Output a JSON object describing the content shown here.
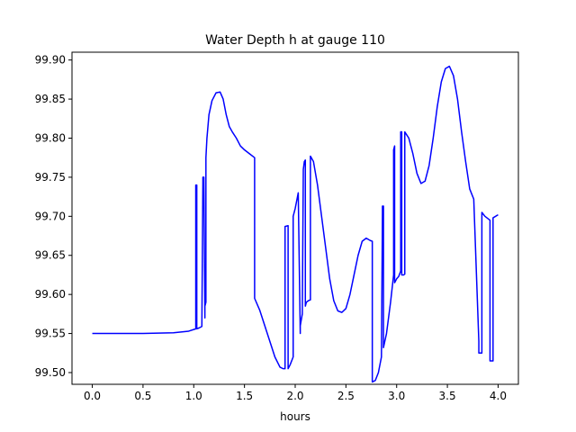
{
  "chart_data": {
    "type": "line",
    "title": "Water Depth h at gauge 110",
    "xlabel": "hours",
    "ylabel": "",
    "xlim": [
      -0.2,
      4.2
    ],
    "ylim": [
      99.485,
      99.91
    ],
    "grid": false,
    "xticks": [
      0.0,
      0.5,
      1.0,
      1.5,
      2.0,
      2.5,
      3.0,
      3.5,
      4.0
    ],
    "xtick_labels": [
      "0.0",
      "0.5",
      "1.0",
      "1.5",
      "2.0",
      "2.5",
      "3.0",
      "3.5",
      "4.0"
    ],
    "yticks": [
      99.5,
      99.55,
      99.6,
      99.65,
      99.7,
      99.75,
      99.8,
      99.85,
      99.9
    ],
    "ytick_labels": [
      "99.50",
      "99.55",
      "99.60",
      "99.65",
      "99.70",
      "99.75",
      "99.80",
      "99.85",
      "99.90"
    ],
    "series": [
      {
        "name": "",
        "color": "#0000ff",
        "x": [
          0.0,
          0.5,
          0.8,
          0.95,
          1.02,
          1.02,
          1.03,
          1.03,
          1.05,
          1.08,
          1.09,
          1.09,
          1.1,
          1.11,
          1.11,
          1.12,
          1.12,
          1.13,
          1.15,
          1.18,
          1.22,
          1.26,
          1.29,
          1.32,
          1.35,
          1.38,
          1.42,
          1.46,
          1.5,
          1.55,
          1.6,
          1.6,
          1.65,
          1.7,
          1.75,
          1.8,
          1.85,
          1.88,
          1.9,
          1.9,
          1.93,
          1.93,
          1.95,
          1.98,
          1.98,
          2.0,
          2.03,
          2.05,
          2.05,
          2.07,
          2.08,
          2.09,
          2.1,
          2.1,
          2.11,
          2.13,
          2.15,
          2.15,
          2.18,
          2.22,
          2.26,
          2.3,
          2.34,
          2.38,
          2.42,
          2.46,
          2.5,
          2.54,
          2.58,
          2.62,
          2.66,
          2.7,
          2.74,
          2.76,
          2.76,
          2.79,
          2.82,
          2.85,
          2.86,
          2.86,
          2.87,
          2.87,
          2.9,
          2.94,
          2.97,
          2.97,
          2.98,
          2.98,
          3.0,
          3.02,
          3.04,
          3.04,
          3.05,
          3.05,
          3.07,
          3.08,
          3.08,
          3.12,
          3.16,
          3.2,
          3.24,
          3.28,
          3.32,
          3.36,
          3.4,
          3.44,
          3.48,
          3.52,
          3.56,
          3.6,
          3.64,
          3.68,
          3.72,
          3.76,
          3.81,
          3.81,
          3.84,
          3.84,
          3.87,
          3.92,
          3.92,
          3.95,
          3.95,
          4.0
        ],
        "y": [
          99.55,
          99.55,
          99.551,
          99.553,
          99.556,
          99.74,
          99.74,
          99.556,
          99.557,
          99.559,
          99.745,
          99.75,
          99.75,
          99.57,
          99.585,
          99.59,
          99.775,
          99.8,
          99.83,
          99.848,
          99.858,
          99.859,
          99.85,
          99.83,
          99.815,
          99.808,
          99.8,
          99.79,
          99.785,
          99.78,
          99.775,
          99.595,
          99.58,
          99.56,
          99.54,
          99.52,
          99.507,
          99.505,
          99.505,
          99.687,
          99.688,
          99.505,
          99.51,
          99.52,
          99.7,
          99.71,
          99.73,
          99.55,
          99.56,
          99.575,
          99.76,
          99.77,
          99.772,
          99.585,
          99.59,
          99.592,
          99.593,
          99.777,
          99.77,
          99.74,
          99.7,
          99.66,
          99.62,
          99.592,
          99.579,
          99.577,
          99.582,
          99.6,
          99.625,
          99.65,
          99.668,
          99.672,
          99.669,
          99.668,
          99.488,
          99.49,
          99.5,
          99.52,
          99.705,
          99.713,
          99.713,
          99.532,
          99.55,
          99.59,
          99.625,
          99.785,
          99.79,
          99.615,
          99.62,
          99.623,
          99.63,
          99.808,
          99.808,
          99.625,
          99.625,
          99.626,
          99.808,
          99.8,
          99.78,
          99.755,
          99.742,
          99.745,
          99.765,
          99.8,
          99.84,
          99.872,
          99.889,
          99.892,
          99.88,
          99.85,
          99.808,
          99.77,
          99.735,
          99.722,
          99.54,
          99.525,
          99.525,
          99.705,
          99.7,
          99.695,
          99.515,
          99.515,
          99.698,
          99.702
        ]
      }
    ]
  }
}
